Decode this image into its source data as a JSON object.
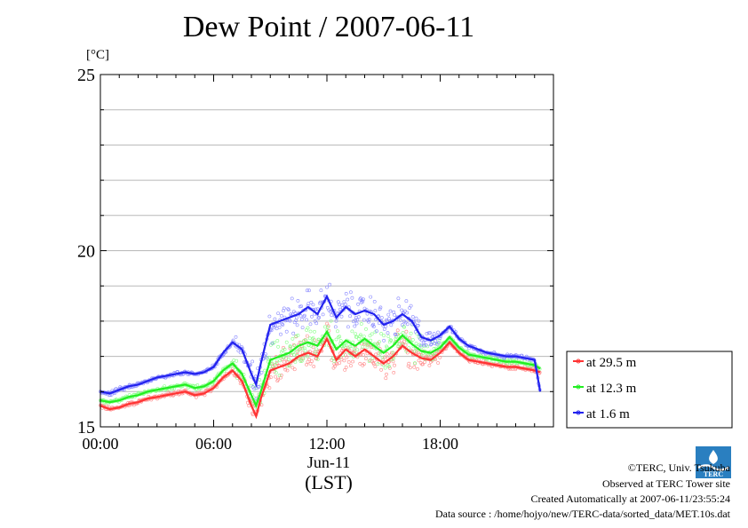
{
  "chart_data": {
    "type": "line",
    "title": "Dew Point / 2007-06-11",
    "ylabel": "[°C]",
    "xlabel_date": "Jun-11",
    "xlabel_tz": "(LST)",
    "ylim": [
      15,
      25
    ],
    "y_ticks": [
      15,
      20,
      25
    ],
    "y_grid": [
      16,
      17,
      18,
      19,
      21,
      22,
      23,
      24
    ],
    "xlim": [
      0,
      24
    ],
    "x_ticks": [
      0,
      6,
      12,
      18
    ],
    "x_tick_labels": [
      "00:00",
      "06:00",
      "12:00",
      "18:00"
    ],
    "legend_position": "right",
    "series": [
      {
        "name": "at 29.5 m",
        "color": "#ff3333",
        "dot_color": "#ff8888",
        "x": [
          0,
          0.5,
          1,
          1.5,
          2,
          2.5,
          3,
          3.5,
          4,
          4.5,
          5,
          5.5,
          6,
          6.5,
          7,
          7.5,
          8,
          8.25,
          8.5,
          9,
          9.5,
          10,
          10.5,
          11,
          11.5,
          12,
          12.5,
          13,
          13.5,
          14,
          14.5,
          15,
          15.5,
          16,
          16.5,
          17,
          17.5,
          18,
          18.5,
          19,
          19.5,
          20,
          20.5,
          21,
          21.5,
          22,
          22.5,
          23,
          23.3
        ],
        "y": [
          15.6,
          15.5,
          15.55,
          15.65,
          15.7,
          15.8,
          15.85,
          15.9,
          15.95,
          16.0,
          15.9,
          15.95,
          16.1,
          16.4,
          16.6,
          16.3,
          15.6,
          15.3,
          15.8,
          16.6,
          16.7,
          16.8,
          17.0,
          17.1,
          17.0,
          17.5,
          16.9,
          17.2,
          17.0,
          17.2,
          17.0,
          16.8,
          17.0,
          17.3,
          17.1,
          16.95,
          16.9,
          17.1,
          17.4,
          17.1,
          16.9,
          16.85,
          16.8,
          16.75,
          16.7,
          16.7,
          16.65,
          16.6,
          16.55
        ]
      },
      {
        "name": "at 12.3 m",
        "color": "#22ee22",
        "dot_color": "#88ff88",
        "x": [
          0,
          0.5,
          1,
          1.5,
          2,
          2.5,
          3,
          3.5,
          4,
          4.5,
          5,
          5.5,
          6,
          6.5,
          7,
          7.5,
          8,
          8.25,
          8.5,
          9,
          9.5,
          10,
          10.5,
          11,
          11.5,
          12,
          12.5,
          13,
          13.5,
          14,
          14.5,
          15,
          15.5,
          16,
          16.5,
          17,
          17.5,
          18,
          18.5,
          19,
          19.5,
          20,
          20.5,
          21,
          21.5,
          22,
          22.5,
          23,
          23.3
        ],
        "y": [
          15.75,
          15.7,
          15.75,
          15.85,
          15.9,
          16.0,
          16.05,
          16.1,
          16.15,
          16.2,
          16.1,
          16.15,
          16.3,
          16.6,
          16.8,
          16.5,
          15.9,
          15.6,
          16.0,
          16.9,
          17.0,
          17.1,
          17.3,
          17.4,
          17.3,
          17.7,
          17.2,
          17.45,
          17.3,
          17.5,
          17.3,
          17.1,
          17.3,
          17.6,
          17.35,
          17.15,
          17.1,
          17.25,
          17.55,
          17.25,
          17.05,
          17.0,
          16.95,
          16.9,
          16.85,
          16.85,
          16.8,
          16.75,
          16.65
        ]
      },
      {
        "name": "at 1.6 m",
        "color": "#2222ee",
        "dot_color": "#8888ff",
        "x": [
          0,
          0.5,
          1,
          1.5,
          2,
          2.5,
          3,
          3.5,
          4,
          4.5,
          5,
          5.5,
          6,
          6.5,
          7,
          7.5,
          8,
          8.25,
          8.5,
          9,
          9.5,
          10,
          10.5,
          11,
          11.5,
          12,
          12.5,
          13,
          13.5,
          14,
          14.5,
          15,
          15.5,
          16,
          16.5,
          17,
          17.5,
          18,
          18.5,
          19,
          19.5,
          20,
          20.5,
          21,
          21.5,
          22,
          22.5,
          23,
          23.3
        ],
        "y": [
          16.0,
          15.95,
          16.05,
          16.15,
          16.2,
          16.3,
          16.4,
          16.45,
          16.5,
          16.55,
          16.5,
          16.55,
          16.7,
          17.1,
          17.4,
          17.2,
          16.5,
          16.2,
          16.8,
          17.9,
          18.0,
          18.1,
          18.2,
          18.4,
          18.2,
          18.7,
          18.1,
          18.4,
          18.2,
          18.3,
          18.2,
          17.9,
          18.0,
          18.2,
          18.0,
          17.55,
          17.45,
          17.6,
          17.85,
          17.5,
          17.3,
          17.2,
          17.1,
          17.05,
          17.0,
          17.0,
          16.95,
          16.9,
          16.0
        ]
      }
    ]
  },
  "footer": {
    "copyright": "©TERC, Univ. Tsukuba",
    "observed": "Observed at TERC Tower site",
    "created": "Created Automatically at 2007-06-11/23:55:24",
    "source": "Data source : /home/hojyo/new/TERC-data/sorted_data/MET.10s.dat",
    "logo_text": "TERC"
  }
}
